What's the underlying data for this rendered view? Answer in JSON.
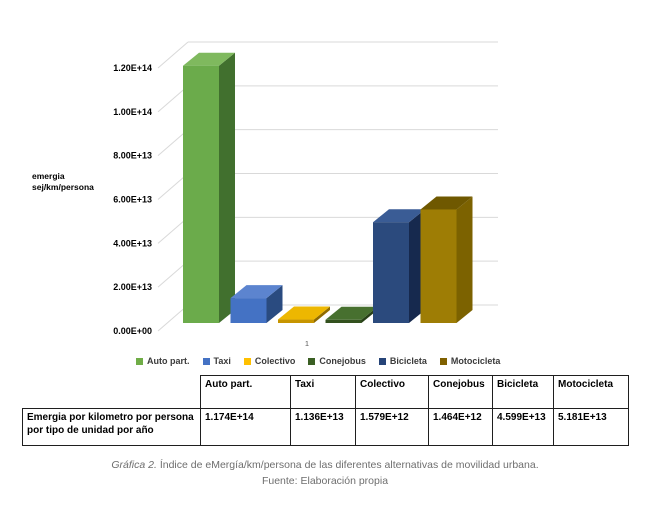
{
  "chart_data": {
    "type": "bar",
    "style": "3d-column",
    "title": "",
    "ylabel": "emergia sej/km/persona",
    "ylabel_lines": [
      "emergia",
      "sej/km/persona"
    ],
    "x_category_label": "1",
    "categories": [
      "Auto part.",
      "Taxi",
      "Colectivo",
      "Conejobus",
      "Bicicleta",
      "Motocicleta"
    ],
    "values": [
      117400000000000,
      11360000000000,
      1579000000000,
      1464000000000,
      45990000000000,
      51810000000000
    ],
    "value_labels": [
      "1.174E+14",
      "1.136E+13",
      "1.579E+12",
      "1.464E+12",
      "4.599E+13",
      "5.181E+13"
    ],
    "ylim": [
      0,
      120000000000000
    ],
    "ytick_step": 20000000000000,
    "ytick_labels": [
      "0.00E+00",
      "2.00E+13",
      "4.00E+13",
      "6.00E+13",
      "8.00E+13",
      "1.00E+14",
      "1.20E+14"
    ],
    "grid": true,
    "legend_position": "bottom",
    "gridline_color": "#d9d9d9",
    "series_colors": [
      {
        "name": "Auto part.",
        "front": "#6BAB4B",
        "top": "#7FB95E",
        "side": "#41702E",
        "legend": "#70AD47"
      },
      {
        "name": "Taxi",
        "front": "#4472C4",
        "top": "#5C84CF",
        "side": "#2A4B80",
        "legend": "#4472C4"
      },
      {
        "name": "Colectivo",
        "front": "#C79500",
        "top": "#EDB701",
        "side": "#8F6B00",
        "legend": "#FFC000"
      },
      {
        "name": "Conejobus",
        "front": "#33511E",
        "top": "#47702F",
        "side": "#273F17",
        "legend": "#3A5F23"
      },
      {
        "name": "Bicicleta",
        "front": "#2B4A7D",
        "top": "#3A5C95",
        "side": "#16294E",
        "legend": "#264478"
      },
      {
        "name": "Motocicleta",
        "front": "#9E7D05",
        "top": "#6F5800",
        "side": "#7C6200",
        "legend": "#7F6000"
      }
    ]
  },
  "table": {
    "row_label": "Emergia por kilometro por persona por tipo de unidad por año",
    "columns": [
      "Auto part.",
      "Taxi",
      "Colectivo",
      "Conejobus",
      "Bicicleta",
      "Motocicleta"
    ],
    "values": [
      "1.174E+14",
      "1.136E+13",
      "1.579E+12",
      "1.464E+12",
      "4.599E+13",
      "5.181E+13"
    ]
  },
  "caption": {
    "line1_italic": "Gráfica 2.",
    "line1_rest": " Índice de eMergía/km/persona de las diferentes alternativas de movilidad urbana.",
    "line2": "Fuente: Elaboración propia"
  }
}
